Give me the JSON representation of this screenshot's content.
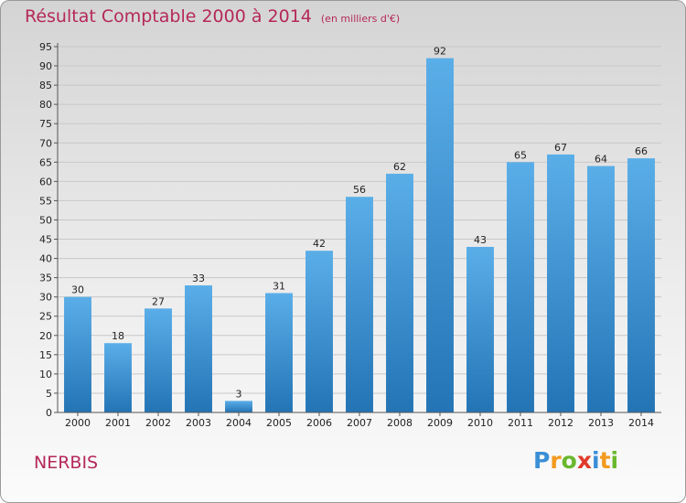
{
  "title": "Résultat Comptable 2000 à 2014",
  "subtitle": "(en milliers d'€)",
  "commune": "NERBIS",
  "logo": {
    "letters": [
      "P",
      "r",
      "o",
      "x",
      "i",
      "t",
      "i"
    ],
    "colors": [
      "#3a8fd6",
      "#f29a1f",
      "#6ab82e",
      "#e03a2a",
      "#3a8fd6",
      "#f29a1f",
      "#6ab82e"
    ]
  },
  "colors": {
    "title": "#b5285a",
    "bar_top": "#5aaee8",
    "bar_bottom": "#2374b5",
    "grid": "#c8c8c8"
  },
  "chart_data": {
    "type": "bar",
    "categories": [
      "2000",
      "2001",
      "2002",
      "2003",
      "2004",
      "2005",
      "2006",
      "2007",
      "2008",
      "2009",
      "2010",
      "2011",
      "2012",
      "2013",
      "2014"
    ],
    "values": [
      30,
      18,
      27,
      33,
      3,
      31,
      42,
      56,
      62,
      92,
      43,
      65,
      67,
      64,
      66
    ],
    "title": "Résultat Comptable 2000 à 2014",
    "xlabel": "",
    "ylabel": "",
    "ylim": [
      0,
      95
    ],
    "ytick_step": 5,
    "grid": true,
    "data_labels": true
  }
}
